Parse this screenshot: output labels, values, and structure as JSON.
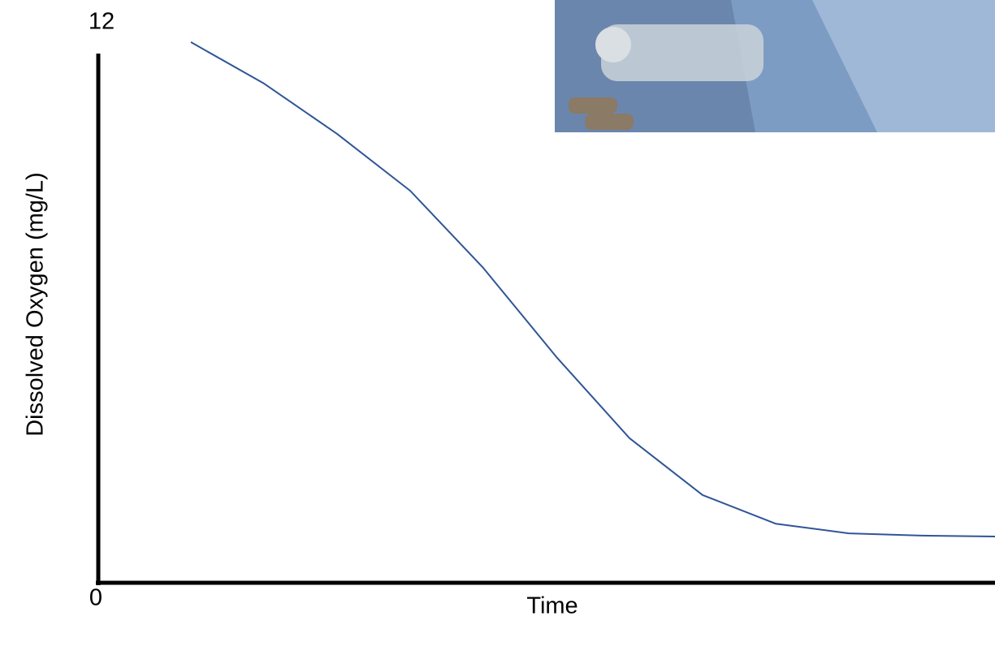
{
  "chart_data": {
    "type": "line",
    "y_label": "Dissolved Oxygen (mg/L)",
    "x_label": "Time",
    "values": [
      12.26,
      11.32,
      10.18,
      8.89,
      7.14,
      5.12,
      3.28,
      1.99,
      1.34,
      1.12,
      1.07,
      1.05
    ],
    "color": "#2f5597",
    "ylim": [
      0,
      12
    ],
    "yticks": [
      0,
      12
    ],
    "grid": false
  }
}
